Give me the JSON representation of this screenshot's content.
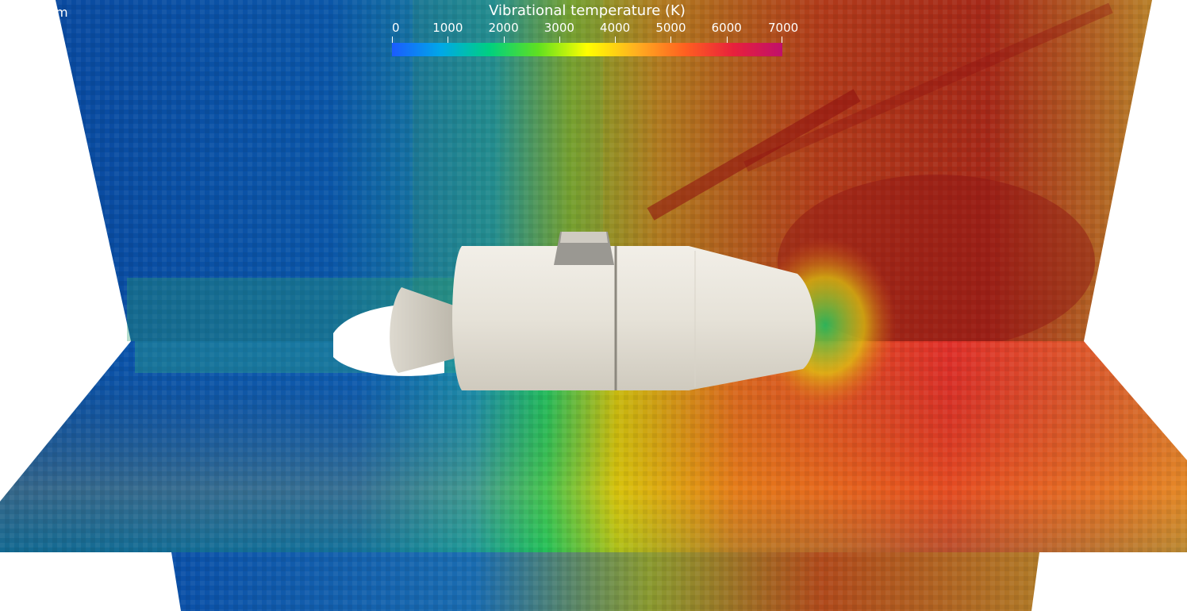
{
  "scene": {
    "corner_label": "m",
    "colorbar": {
      "title": "Vibrational temperature (K)",
      "ticks": [
        "0",
        "1000",
        "2000",
        "3000",
        "4000",
        "5000",
        "6000",
        "7000"
      ],
      "min": 0,
      "max": 7000,
      "colormap": [
        "#1a5cff",
        "#00b0e0",
        "#00d080",
        "#60e020",
        "#ffff00",
        "#ffa020",
        "#ff5020",
        "#e0204a",
        "#c0106a"
      ]
    },
    "colors": {
      "background": "#ffffff",
      "cold_field": "#0a4aa0",
      "hot_field": "#b22a18",
      "spacecraft": "#e8e4dc"
    }
  }
}
